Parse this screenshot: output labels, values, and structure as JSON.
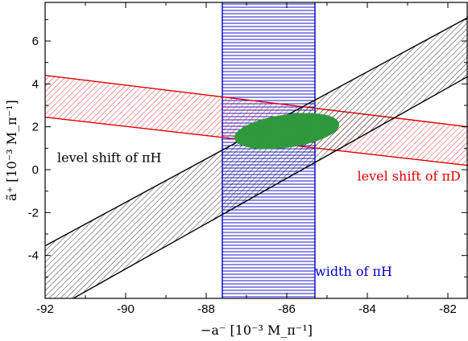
{
  "chart_data": {
    "type": "area",
    "title": "",
    "xlabel": "−a⁻ [10⁻³ M_π⁻¹]",
    "ylabel": "ã⁺ [10⁻³ M_π⁻¹]",
    "xlim": [
      -92,
      -81.5
    ],
    "ylim": [
      -6,
      7.8
    ],
    "x_ticks": [
      -92,
      -90,
      -88,
      -86,
      -84,
      -82
    ],
    "y_ticks": [
      -4,
      -2,
      0,
      2,
      4,
      6
    ],
    "x_tick_labels": [
      "-92",
      "-90",
      "-88",
      "-86",
      "-84",
      "-82"
    ],
    "y_tick_labels": [
      "-4",
      "-2",
      "0",
      "2",
      "4",
      "6"
    ],
    "grid": false,
    "series": [
      {
        "name": "level shift of πH",
        "color": "#000000",
        "hatch": "diagonal-backslash",
        "upper": [
          [
            -92,
            -3.55
          ],
          [
            -81.5,
            7.1
          ]
        ],
        "lower": [
          [
            -91.3,
            -6.0
          ],
          [
            -81.5,
            4.35
          ]
        ]
      },
      {
        "name": "level shift of πD",
        "color": "#e00000",
        "hatch": "diagonal-backslash",
        "upper": [
          [
            -92,
            4.4
          ],
          [
            -81.5,
            2.0
          ]
        ],
        "lower": [
          [
            -92,
            2.45
          ],
          [
            -81.5,
            0.2
          ]
        ]
      },
      {
        "name": "width of πH",
        "color": "#0000cc",
        "hatch": "horizontal",
        "x_range": [
          -87.6,
          -85.3
        ]
      }
    ],
    "ellipse": {
      "color": "#2e9b3a",
      "fill": "#3cb34a",
      "center": [
        -86.0,
        1.8
      ],
      "semi_x": 1.3,
      "semi_y": 0.75,
      "rotation_deg": 8
    },
    "annotations": [
      {
        "text": "level shift of πH",
        "color": "#000000",
        "anchor": [
          -91.7,
          0.35
        ]
      },
      {
        "text": "level shift of πD",
        "color": "#e00000",
        "anchor": [
          -84.25,
          -0.5
        ]
      },
      {
        "text": "width of πH",
        "color": "#0000cc",
        "anchor": [
          -85.3,
          -4.95
        ]
      }
    ]
  }
}
